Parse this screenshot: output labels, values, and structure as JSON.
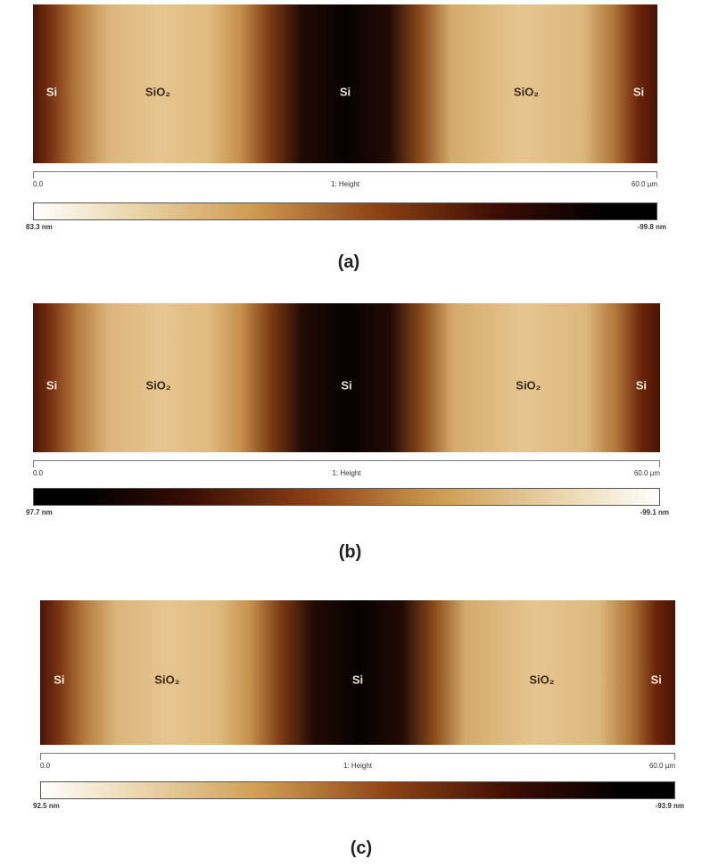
{
  "panels": [
    {
      "label": "(a)",
      "regions": [
        "Si",
        "SiO₂",
        "Si",
        "SiO₂",
        "Si"
      ],
      "axis_start": "0.0",
      "axis_title": "1: Height",
      "axis_end": "60.0 µm",
      "colorbar_left": "83.3 nm",
      "colorbar_right": "-99.8 nm"
    },
    {
      "label": "(b)",
      "regions": [
        "Si",
        "SiO₂",
        "Si",
        "SiO₂",
        "Si"
      ],
      "axis_start": "0.0",
      "axis_title": "1: Height",
      "axis_end": "60.0 µm",
      "colorbar_left": "97.7 nm",
      "colorbar_right": "-99.1 nm"
    },
    {
      "label": "(c)",
      "regions": [
        "Si",
        "SiO₂",
        "Si",
        "SiO₂",
        "Si"
      ],
      "axis_start": "0.0",
      "axis_title": "1: Height",
      "axis_end": "60.0 µm",
      "colorbar_left": "92.5 nm",
      "colorbar_right": "-93.9 nm"
    }
  ]
}
